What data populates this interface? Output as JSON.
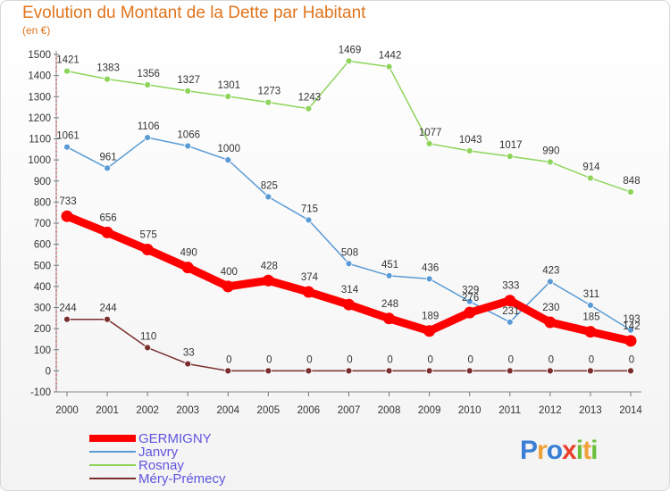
{
  "header": {
    "title": "Evolution du Montant de la Dette par Habitant",
    "unit": "(en €)"
  },
  "logo": {
    "text": "Proxiti",
    "colors": [
      "#3a7fd5",
      "#f0a23a",
      "#3a7fd5",
      "#e8402a",
      "#6abf3a",
      "#f0a23a",
      "#6abf3a"
    ]
  },
  "chart_data": {
    "type": "line",
    "title": "Evolution du Montant de la Dette par Habitant",
    "ylabel": "(en €)",
    "xlabel": "",
    "ylim": [
      -100,
      1500
    ],
    "yticks": [
      -100,
      0,
      100,
      200,
      300,
      400,
      500,
      600,
      700,
      800,
      900,
      1000,
      1100,
      1200,
      1300,
      1400,
      1500
    ],
    "x": [
      2000,
      2001,
      2002,
      2003,
      2004,
      2005,
      2006,
      2007,
      2008,
      2009,
      2010,
      2011,
      2012,
      2013,
      2014
    ],
    "grid": false,
    "legend_position": "bottom-left",
    "series": [
      {
        "name": "GERMIGNY",
        "color": "#ff0000",
        "values": [
          733,
          656,
          575,
          490,
          400,
          428,
          374,
          314,
          248,
          189,
          276,
          333,
          230,
          185,
          142
        ],
        "labels": [
          "733",
          "656",
          "575",
          "490",
          "400",
          "428",
          "374",
          "314",
          "248",
          "189",
          "276",
          "333",
          "230",
          "185",
          "142"
        ]
      },
      {
        "name": "Janvry",
        "color": "#5a9bd5",
        "values": [
          1061,
          961,
          1106,
          1066,
          1000,
          825,
          715,
          508,
          451,
          436,
          329,
          231,
          423,
          311,
          193
        ],
        "labels": [
          "1061",
          "961",
          "1106",
          "1066",
          "1000",
          "825",
          "715",
          "508",
          "451",
          "436",
          "329",
          "231",
          "423",
          "311",
          "193"
        ]
      },
      {
        "name": "Rosnay",
        "color": "#8ed45b",
        "values": [
          1421,
          1383,
          1356,
          1327,
          1301,
          1273,
          1243,
          1469,
          1442,
          1077,
          1043,
          1017,
          990,
          914,
          848
        ],
        "labels": [
          "1421",
          "1383",
          "1356",
          "1327",
          "1301",
          "1273",
          "1243",
          "1469",
          "1442",
          "1077",
          "1043",
          "1017",
          "990",
          "914",
          "848"
        ]
      },
      {
        "name": "Méry-Prémecy",
        "color": "#7a2e2e",
        "values": [
          244,
          244,
          110,
          33,
          0,
          0,
          0,
          0,
          0,
          0,
          0,
          0,
          0,
          0,
          0
        ],
        "labels": [
          "244",
          "244",
          "110",
          "33",
          "0",
          "0",
          "0",
          "0",
          "0",
          "0",
          "0",
          "0",
          "0",
          "0",
          "0"
        ]
      }
    ]
  }
}
